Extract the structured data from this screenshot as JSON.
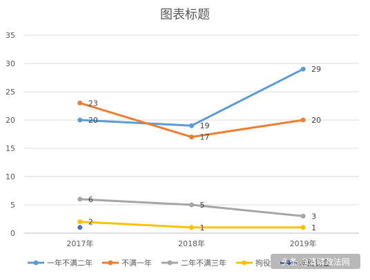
{
  "chart_data": {
    "type": "line",
    "title": "图表标题",
    "categories": [
      "2017年",
      "2018年",
      "2019年"
    ],
    "ylim": [
      0,
      35
    ],
    "yticks": [
      0,
      5,
      10,
      15,
      20,
      25,
      30,
      35
    ],
    "grid": true,
    "legend": "bottom",
    "series": [
      {
        "name": "一年不满二年",
        "color": "#5B9BD5",
        "values": [
          20,
          19,
          29
        ]
      },
      {
        "name": "不满一年",
        "color": "#ED7D31",
        "values": [
          23,
          17,
          20
        ]
      },
      {
        "name": "二年不满三年",
        "color": "#A5A5A5",
        "values": [
          6,
          5,
          3
        ]
      },
      {
        "name": "拘役",
        "color": "#FFC000",
        "values": [
          2,
          1,
          1
        ]
      },
      {
        "name": "单处罚金",
        "color": "#4472C4",
        "values": [
          1,
          null,
          null
        ]
      }
    ]
  },
  "watermark": {
    "text": "头条 @清晴政法网"
  }
}
